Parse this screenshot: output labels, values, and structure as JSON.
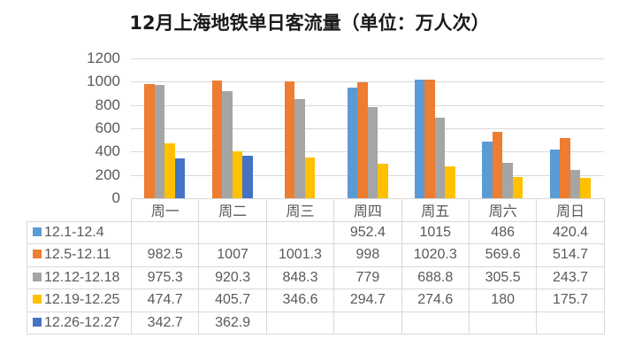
{
  "title": "12月上海地铁单日客流量（单位：万人次）",
  "chart_data": {
    "type": "bar",
    "title": "12月上海地铁单日客流量（单位：万人次）",
    "xlabel": "",
    "ylabel": "",
    "ylim": [
      0,
      1200
    ],
    "yticks": [
      "0",
      "200",
      "400",
      "600",
      "800",
      "1000",
      "1200"
    ],
    "grid": true,
    "legend_position": "data-table",
    "categories": [
      "周一",
      "周二",
      "周三",
      "周四",
      "周五",
      "周六",
      "周日"
    ],
    "series": [
      {
        "name": "12.1-12.4",
        "color": "#5B9BD5",
        "values": [
          null,
          null,
          null,
          952.4,
          1015,
          486,
          420.4
        ],
        "labels": [
          "",
          "",
          "",
          "952.4",
          "1015",
          "486",
          "420.4"
        ]
      },
      {
        "name": "12.5-12.11",
        "color": "#ED7D31",
        "values": [
          982.5,
          1007,
          1001.3,
          998,
          1020.3,
          569.6,
          514.7
        ],
        "labels": [
          "982.5",
          "1007",
          "1001.3",
          "998",
          "1020.3",
          "569.6",
          "514.7"
        ]
      },
      {
        "name": "12.12-12.18",
        "color": "#A5A5A5",
        "values": [
          975.3,
          920.3,
          848.3,
          779,
          688.8,
          305.5,
          243.7
        ],
        "labels": [
          "975.3",
          "920.3",
          "848.3",
          "779",
          "688.8",
          "305.5",
          "243.7"
        ]
      },
      {
        "name": "12.19-12.25",
        "color": "#FFC000",
        "values": [
          474.7,
          405.7,
          346.6,
          294.7,
          274.6,
          180,
          175.7
        ],
        "labels": [
          "474.7",
          "405.7",
          "346.6",
          "294.7",
          "274.6",
          "180",
          "175.7"
        ]
      },
      {
        "name": "12.26-12.27",
        "color": "#4472C4",
        "values": [
          342.7,
          362.9,
          null,
          null,
          null,
          null,
          null
        ],
        "labels": [
          "342.7",
          "362.9",
          "",
          "",
          "",
          "",
          ""
        ]
      }
    ]
  }
}
